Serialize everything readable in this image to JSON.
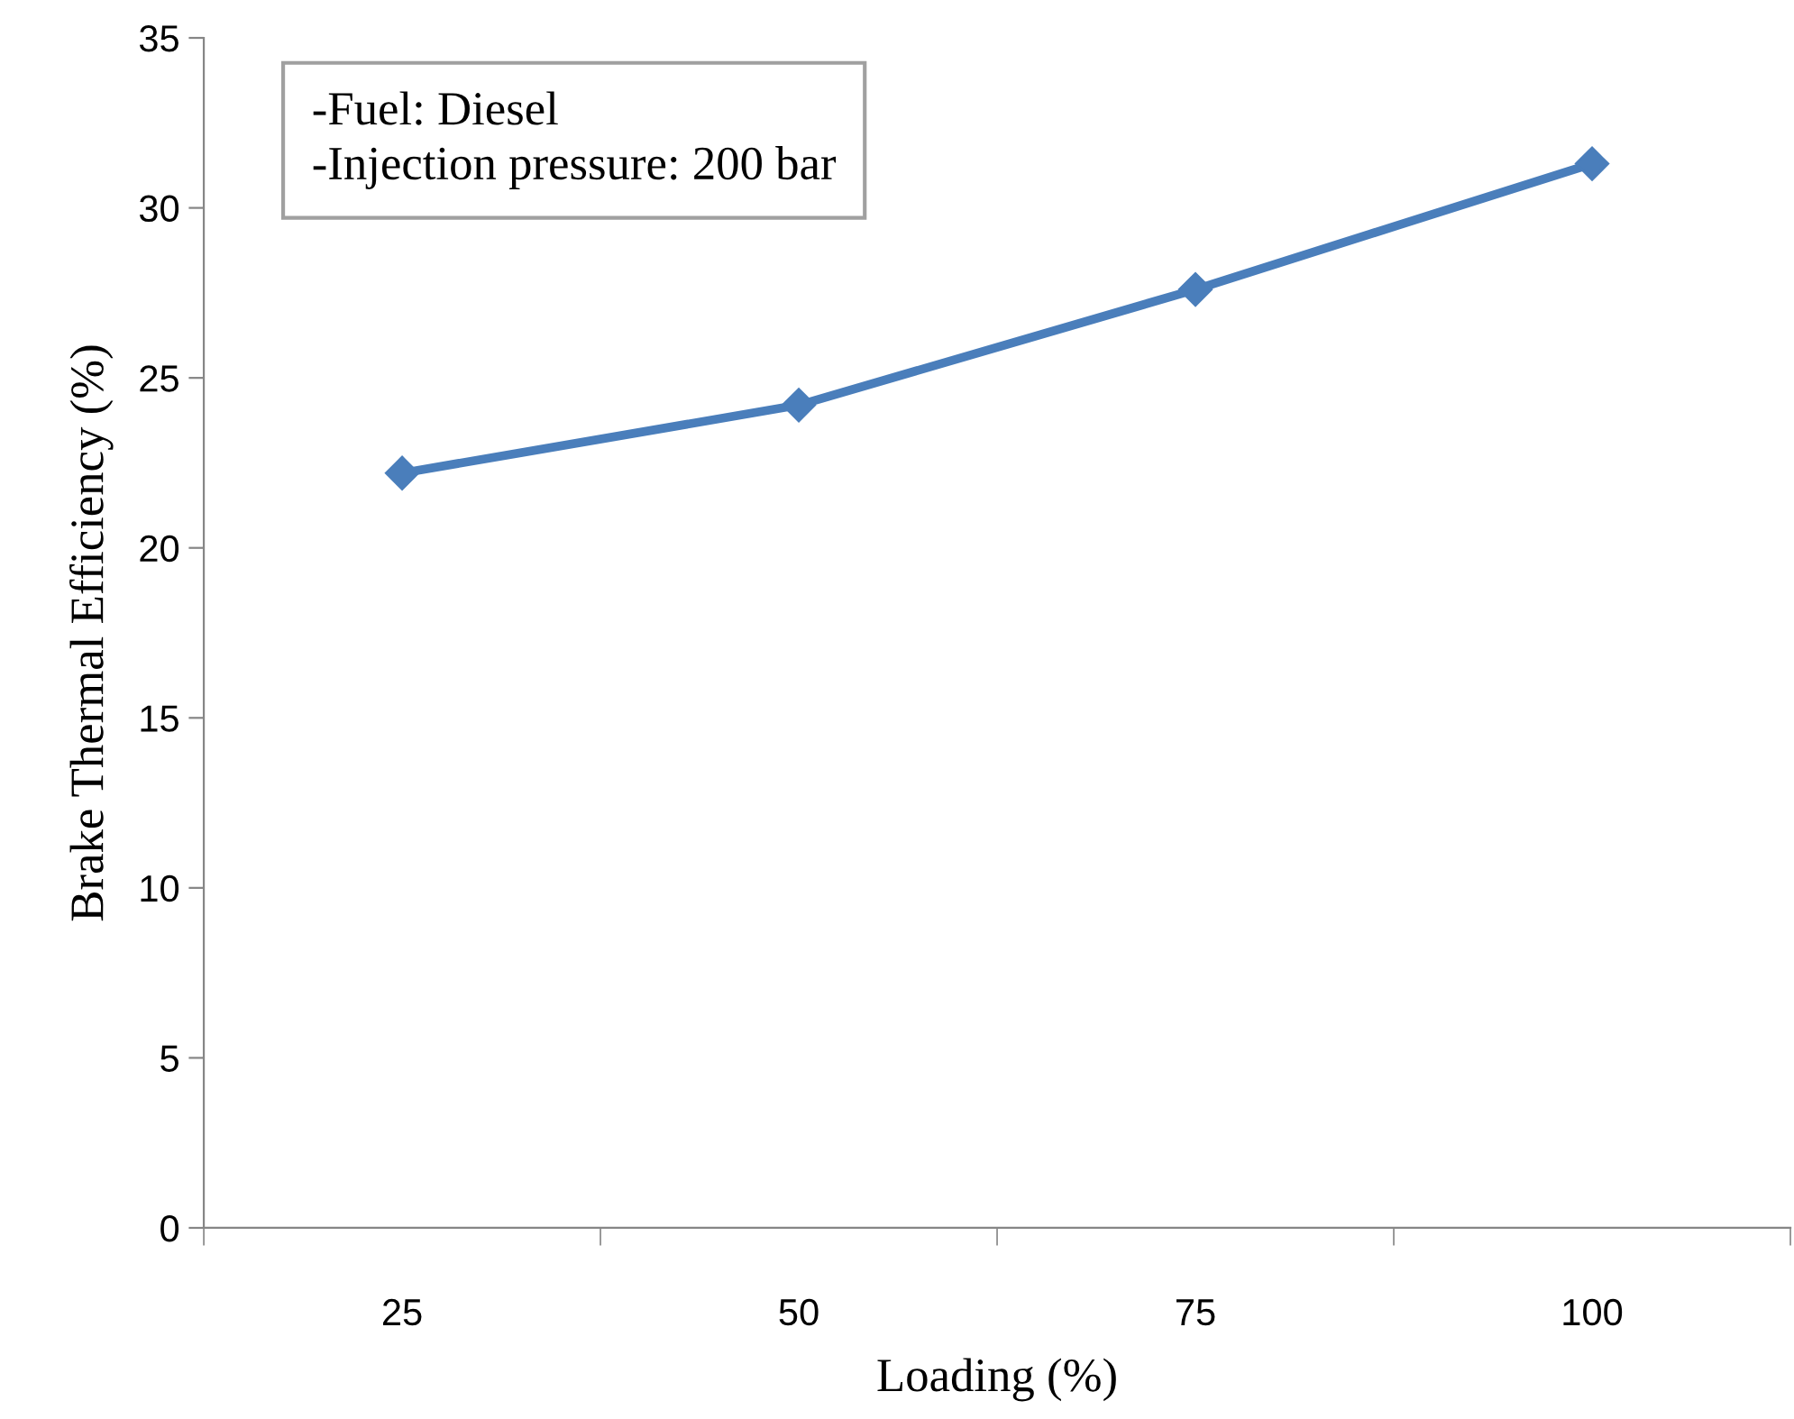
{
  "chart_data": {
    "type": "line",
    "xlabel": "Loading (%)",
    "ylabel": "Brake Thermal Efficiency (%)",
    "categories": [
      "25",
      "50",
      "75",
      "100"
    ],
    "series": [
      {
        "color": "#4a7ebb",
        "values": [
          22.2,
          24.2,
          27.6,
          31.3
        ]
      }
    ],
    "ylim": [
      0,
      35
    ],
    "yticks": [
      0,
      5,
      10,
      15,
      20,
      25,
      30,
      35
    ],
    "marker": "diamond",
    "line_style": "solid",
    "grid": false,
    "legend": false,
    "annotations": [
      "-Fuel: Diesel",
      "-Injection pressure: 200 bar"
    ]
  }
}
